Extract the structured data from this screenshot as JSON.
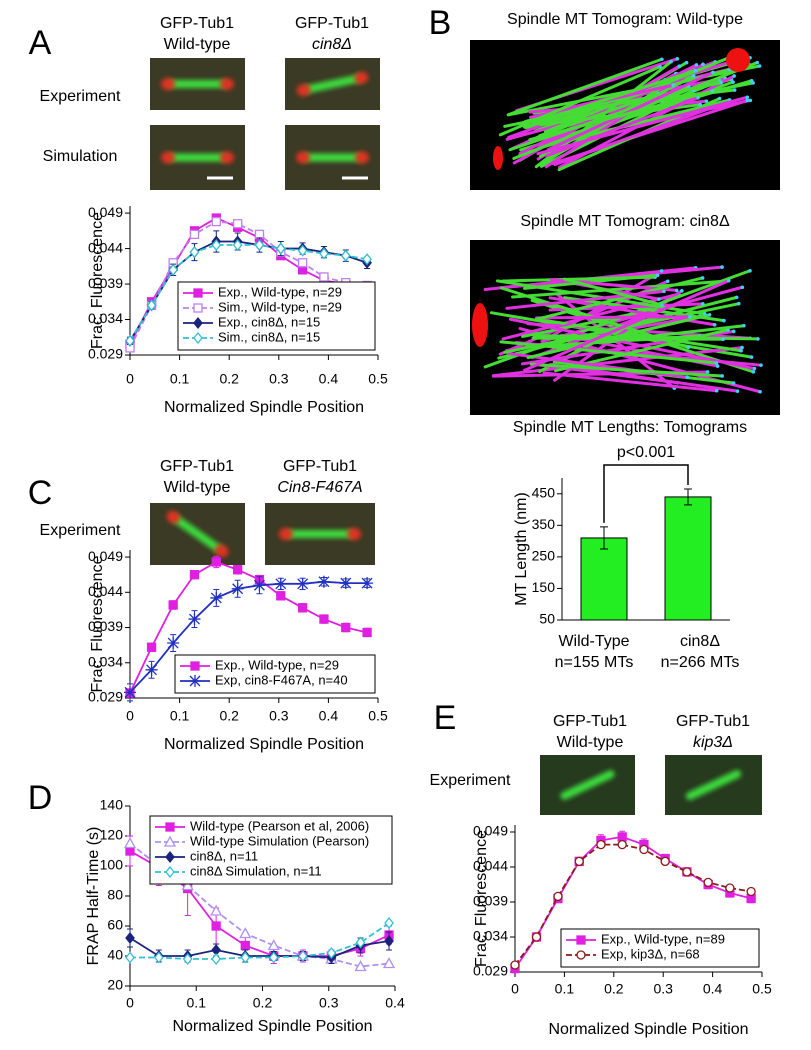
{
  "chart_data": [
    {
      "type": "line",
      "panel": "A",
      "image_columns": [
        [
          "GFP-Tub1",
          "Wild-type"
        ],
        [
          "GFP-Tub1",
          "cin8Δ"
        ]
      ],
      "image_rows": [
        "Experiment",
        "Simulation"
      ],
      "ylabel": "Frac. Fluorescence",
      "xlabel": "Normalized Spindle Position",
      "x": [
        0,
        0.0435,
        0.087,
        0.13,
        0.174,
        0.217,
        0.261,
        0.304,
        0.348,
        0.391,
        0.435,
        0.478
      ],
      "xlim": [
        0,
        0.5
      ],
      "xticks": [
        0,
        0.1,
        0.2,
        0.3,
        0.4,
        0.5
      ],
      "ylim": [
        0.029,
        0.05
      ],
      "yticks": [
        0.029,
        0.034,
        0.039,
        0.044,
        0.049
      ],
      "legend": "lower right",
      "series": [
        {
          "name": "Exp., Wild-type, n=29",
          "color": "#e020e0",
          "marker": "square",
          "dash": false,
          "values": [
            0.0305,
            0.0365,
            0.0415,
            0.0465,
            0.0483,
            0.047,
            0.0455,
            0.043,
            0.041,
            0.0395,
            0.039,
            0.0385
          ]
        },
        {
          "name": "Sim., Wild-type, n=29",
          "color": "#c080f0",
          "marker": "open-square",
          "dash": true,
          "values": [
            0.03,
            0.036,
            0.042,
            0.046,
            0.0478,
            0.0475,
            0.046,
            0.0435,
            0.042,
            0.04,
            0.0392,
            0.0388
          ]
        },
        {
          "name": "Exp., cin8Δ, n=15",
          "color": "#1a237e",
          "marker": "diamond",
          "dash": false,
          "values": [
            0.031,
            0.036,
            0.041,
            0.0435,
            0.045,
            0.045,
            0.0445,
            0.044,
            0.044,
            0.0435,
            0.043,
            0.042
          ],
          "errors": [
            0.0005,
            0.0005,
            0.0008,
            0.0012,
            0.0015,
            0.0012,
            0.001,
            0.001,
            0.0008,
            0.0008,
            0.0008,
            0.0008
          ]
        },
        {
          "name": "Sim., cin8Δ, n=15",
          "color": "#30c0d0",
          "marker": "open-diamond",
          "dash": true,
          "values": [
            0.031,
            0.036,
            0.041,
            0.0435,
            0.0445,
            0.0445,
            0.0445,
            0.044,
            0.0437,
            0.0433,
            0.043,
            0.0425
          ]
        }
      ]
    },
    {
      "type": "bar",
      "panel": "B",
      "image_titles": [
        "Spindle MT Tomogram:  Wild-type",
        "Spindle MT Tomogram:  cin8Δ"
      ],
      "title": "Spindle MT Lengths: Tomograms",
      "ylabel": "MT Length (nm)",
      "categories": [
        "Wild-Type",
        "cin8Δ"
      ],
      "category_sublabels": [
        "n=155 MTs",
        "n=266 MTs"
      ],
      "values": [
        310,
        440
      ],
      "errors": [
        35,
        25
      ],
      "color": "#22ee22",
      "ylim": [
        50,
        500
      ],
      "yticks": [
        50,
        150,
        250,
        350,
        450
      ],
      "annotation": "p<0.001"
    },
    {
      "type": "line",
      "panel": "C",
      "image_columns": [
        [
          "GFP-Tub1",
          "Wild-type"
        ],
        [
          "GFP-Tub1",
          "Cin8-F467A"
        ]
      ],
      "image_rows": [
        "Experiment"
      ],
      "ylabel": "Frac. Fluorescence",
      "xlabel": "Normalized Spindle Position",
      "x": [
        0,
        0.0435,
        0.087,
        0.13,
        0.174,
        0.217,
        0.261,
        0.304,
        0.348,
        0.391,
        0.435,
        0.478
      ],
      "xlim": [
        0,
        0.5
      ],
      "xticks": [
        0,
        0.1,
        0.2,
        0.3,
        0.4,
        0.5
      ],
      "ylim": [
        0.029,
        0.05
      ],
      "yticks": [
        0.029,
        0.034,
        0.039,
        0.044,
        0.049
      ],
      "legend": "lower right",
      "series": [
        {
          "name": "Exp., Wild-type, n=29",
          "color": "#e020e0",
          "marker": "square",
          "dash": false,
          "values": [
            0.0297,
            0.0362,
            0.0422,
            0.0465,
            0.0483,
            0.0472,
            0.0458,
            0.0435,
            0.0418,
            0.0402,
            0.039,
            0.0383
          ],
          "errors": [
            0.0006,
            0.0006,
            0.0006,
            0.0006,
            0.0008,
            0.0006,
            0.0006,
            0.0006,
            0.0006,
            0.0006,
            0.0006,
            0.0006
          ]
        },
        {
          "name": "Exp, cin8-F467A, n=40",
          "color": "#2030c0",
          "marker": "star",
          "dash": false,
          "values": [
            0.0298,
            0.033,
            0.0368,
            0.0402,
            0.0432,
            0.0445,
            0.045,
            0.0452,
            0.0452,
            0.0455,
            0.0453,
            0.0453
          ],
          "errors": [
            0.0012,
            0.0012,
            0.0012,
            0.0012,
            0.0012,
            0.0012,
            0.0012,
            0.0008,
            0.0008,
            0.0006,
            0.0006,
            0.0006
          ]
        }
      ]
    },
    {
      "type": "line",
      "panel": "D",
      "ylabel": "FRAP Half-Time (s)",
      "xlabel": "Normalized Spindle Position",
      "x": [
        0,
        0.0435,
        0.087,
        0.13,
        0.174,
        0.217,
        0.261,
        0.304,
        0.348,
        0.391
      ],
      "xlim": [
        0,
        0.4
      ],
      "xticks": [
        0,
        0.1,
        0.2,
        0.3,
        0.4
      ],
      "ylim": [
        20,
        140
      ],
      "yticks": [
        20,
        40,
        60,
        80,
        100,
        120,
        140
      ],
      "legend": "upper right",
      "series": [
        {
          "name": "Wild-type (Pearson et al, 2006)",
          "color": "#e020e0",
          "marker": "square",
          "dash": false,
          "values": [
            110,
            99,
            85,
            60,
            47,
            40,
            40,
            40,
            45,
            54
          ],
          "errors": [
            10,
            12,
            18,
            12,
            8,
            5,
            4,
            4,
            5,
            6
          ]
        },
        {
          "name": "Wild-type Simulation (Pearson)",
          "color": "#b090f0",
          "marker": "open-triangle",
          "dash": true,
          "values": [
            115,
            100,
            87,
            70,
            55,
            47,
            40,
            38,
            33,
            35
          ]
        },
        {
          "name": "cin8Δ, n=11",
          "color": "#1a237e",
          "marker": "diamond",
          "dash": false,
          "values": [
            52,
            40,
            40,
            44,
            40,
            40,
            40,
            39,
            47,
            50
          ],
          "errors": [
            6,
            4,
            4,
            4,
            4,
            3,
            3,
            4,
            5,
            6
          ]
        },
        {
          "name": "cin8Δ Simulation, n=11",
          "color": "#30c0d0",
          "marker": "open-diamond",
          "dash": true,
          "values": [
            39,
            39,
            38,
            38,
            39,
            39,
            40,
            42,
            49,
            62
          ]
        }
      ]
    },
    {
      "type": "line",
      "panel": "E",
      "image_columns": [
        [
          "GFP-Tub1",
          "Wild-type"
        ],
        [
          "GFP-Tub1",
          "kip3Δ"
        ]
      ],
      "image_rows": [
        "Experiment"
      ],
      "ylabel": "Frac. Fluorescence",
      "xlabel": "Normalized Spindle Position",
      "x": [
        0,
        0.0435,
        0.087,
        0.13,
        0.174,
        0.217,
        0.261,
        0.304,
        0.348,
        0.391,
        0.435,
        0.478
      ],
      "xlim": [
        0,
        0.5
      ],
      "xticks": [
        0,
        0.1,
        0.2,
        0.3,
        0.4,
        0.5
      ],
      "ylim": [
        0.029,
        0.05
      ],
      "yticks": [
        0.029,
        0.034,
        0.039,
        0.044,
        0.049
      ],
      "legend": "lower right",
      "series": [
        {
          "name": "Exp., Wild-type, n=89",
          "color": "#e020e0",
          "marker": "square",
          "dash": false,
          "values": [
            0.0295,
            0.034,
            0.0395,
            0.0448,
            0.0478,
            0.0483,
            0.0472,
            0.0452,
            0.0433,
            0.0415,
            0.0403,
            0.0395
          ],
          "errors": [
            0.0006,
            0.0006,
            0.0006,
            0.0006,
            0.0008,
            0.0008,
            0.0008,
            0.0006,
            0.0006,
            0.0006,
            0.0006,
            0.0006
          ]
        },
        {
          "name": "Exp, kip3Δ, n=68",
          "color": "#8b1a1a",
          "marker": "open-circle",
          "dash": true,
          "values": [
            0.03,
            0.034,
            0.0398,
            0.0448,
            0.0472,
            0.0472,
            0.0465,
            0.0448,
            0.0433,
            0.0418,
            0.041,
            0.0405
          ]
        }
      ]
    }
  ]
}
